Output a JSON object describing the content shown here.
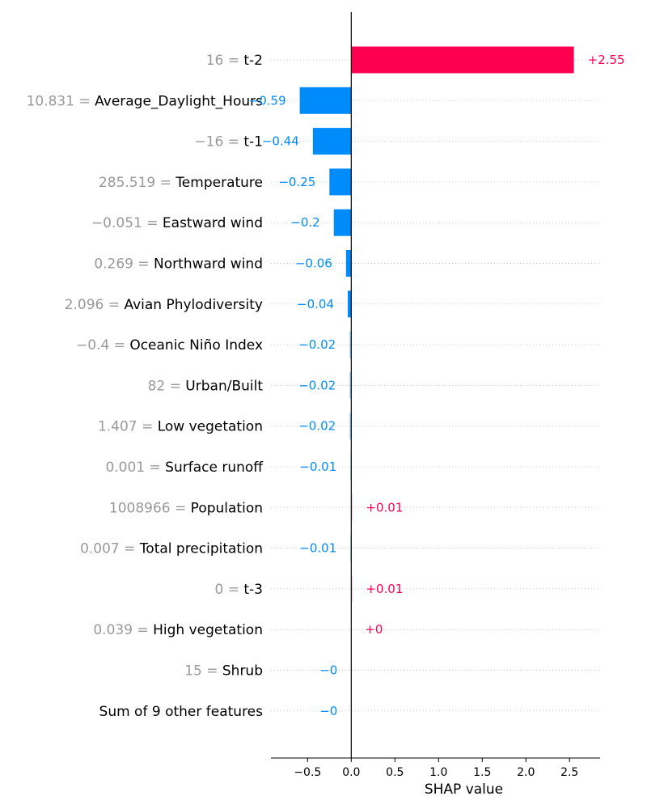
{
  "chart_data": {
    "type": "bar",
    "orientation": "horizontal",
    "plot_kind": "SHAP waterfall-style bar",
    "xlabel": "SHAP value",
    "xlim": [
      -0.92,
      2.85
    ],
    "xticks": [
      -0.5,
      0.0,
      0.5,
      1.0,
      1.5,
      2.0,
      2.5
    ],
    "xtick_labels": [
      "−0.5",
      "0.0",
      "0.5",
      "1.0",
      "1.5",
      "2.0",
      "2.5"
    ],
    "grid": "dotted horizontal lines per feature",
    "colors": {
      "positive": "#ff0051",
      "negative": "#008bfb"
    },
    "features": [
      {
        "value": "16",
        "name": "t-2",
        "shap": 2.55,
        "label": "+2.55"
      },
      {
        "value": "10.831",
        "name": "Average_Daylight_Hours",
        "shap": -0.59,
        "label": "−0.59"
      },
      {
        "value": "−16",
        "name": "t-1",
        "shap": -0.44,
        "label": "−0.44"
      },
      {
        "value": "285.519",
        "name": "Temperature",
        "shap": -0.25,
        "label": "−0.25"
      },
      {
        "value": "−0.051",
        "name": "Eastward wind",
        "shap": -0.2,
        "label": "−0.2"
      },
      {
        "value": "0.269",
        "name": "Northward wind",
        "shap": -0.06,
        "label": "−0.06"
      },
      {
        "value": "2.096",
        "name": "Avian Phylodiversity",
        "shap": -0.04,
        "label": "−0.04"
      },
      {
        "value": "−0.4",
        "name": "Oceanic Niño Index",
        "shap": -0.02,
        "label": "−0.02"
      },
      {
        "value": "82",
        "name": "Urban/Built",
        "shap": -0.02,
        "label": "−0.02"
      },
      {
        "value": "1.407",
        "name": "Low vegetation",
        "shap": -0.02,
        "label": "−0.02"
      },
      {
        "value": "0.001",
        "name": "Surface runoff",
        "shap": -0.01,
        "label": "−0.01"
      },
      {
        "value": "1008966",
        "name": "Population",
        "shap": 0.01,
        "label": "+0.01"
      },
      {
        "value": "0.007",
        "name": "Total precipitation",
        "shap": -0.01,
        "label": "−0.01"
      },
      {
        "value": "0",
        "name": "t-3",
        "shap": 0.01,
        "label": "+0.01"
      },
      {
        "value": "0.039",
        "name": "High vegetation",
        "shap": 0.0,
        "label": "+0"
      },
      {
        "value": "15",
        "name": "Shrub",
        "shap": -0.0,
        "label": "−0"
      },
      {
        "value": "",
        "name": "Sum of 9 other features",
        "shap": -0.0,
        "label": "−0"
      }
    ]
  }
}
